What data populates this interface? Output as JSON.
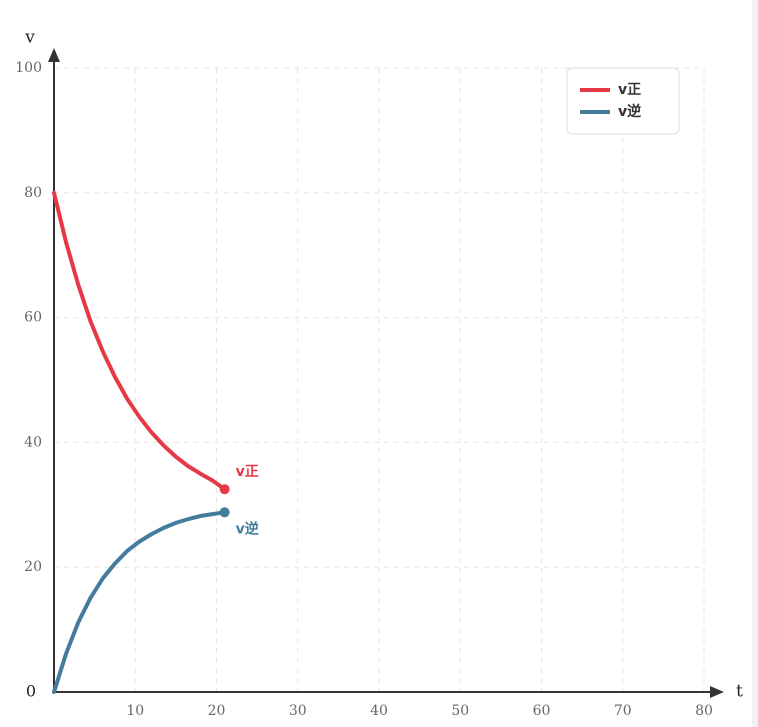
{
  "chart_data": {
    "type": "line",
    "x_label": "t",
    "y_label": "v",
    "x": [
      0,
      1.5,
      3,
      4.5,
      6,
      7.5,
      9,
      10.5,
      12,
      13.5,
      15,
      16.5,
      18,
      19.5,
      21
    ],
    "series": [
      {
        "name": "v正",
        "color": "#e63946",
        "values": [
          80,
          72.0,
          65.2,
          59.4,
          54.6,
          50.5,
          47.0,
          44.1,
          41.6,
          39.5,
          37.7,
          36.2,
          35.0,
          33.9,
          32.5
        ]
      },
      {
        "name": "v逆",
        "color": "#457b9d",
        "values": [
          0,
          6.2,
          11.2,
          15.1,
          18.2,
          20.6,
          22.6,
          24.1,
          25.3,
          26.3,
          27.1,
          27.7,
          28.2,
          28.5,
          28.8
        ]
      }
    ],
    "xlim": [
      0,
      80
    ],
    "ylim": [
      0,
      100
    ],
    "xticks": [
      10,
      20,
      30,
      40,
      50,
      60,
      70,
      80
    ],
    "yticks": [
      0,
      20,
      40,
      60,
      80,
      100
    ],
    "grid": true,
    "legend": "upper right"
  }
}
